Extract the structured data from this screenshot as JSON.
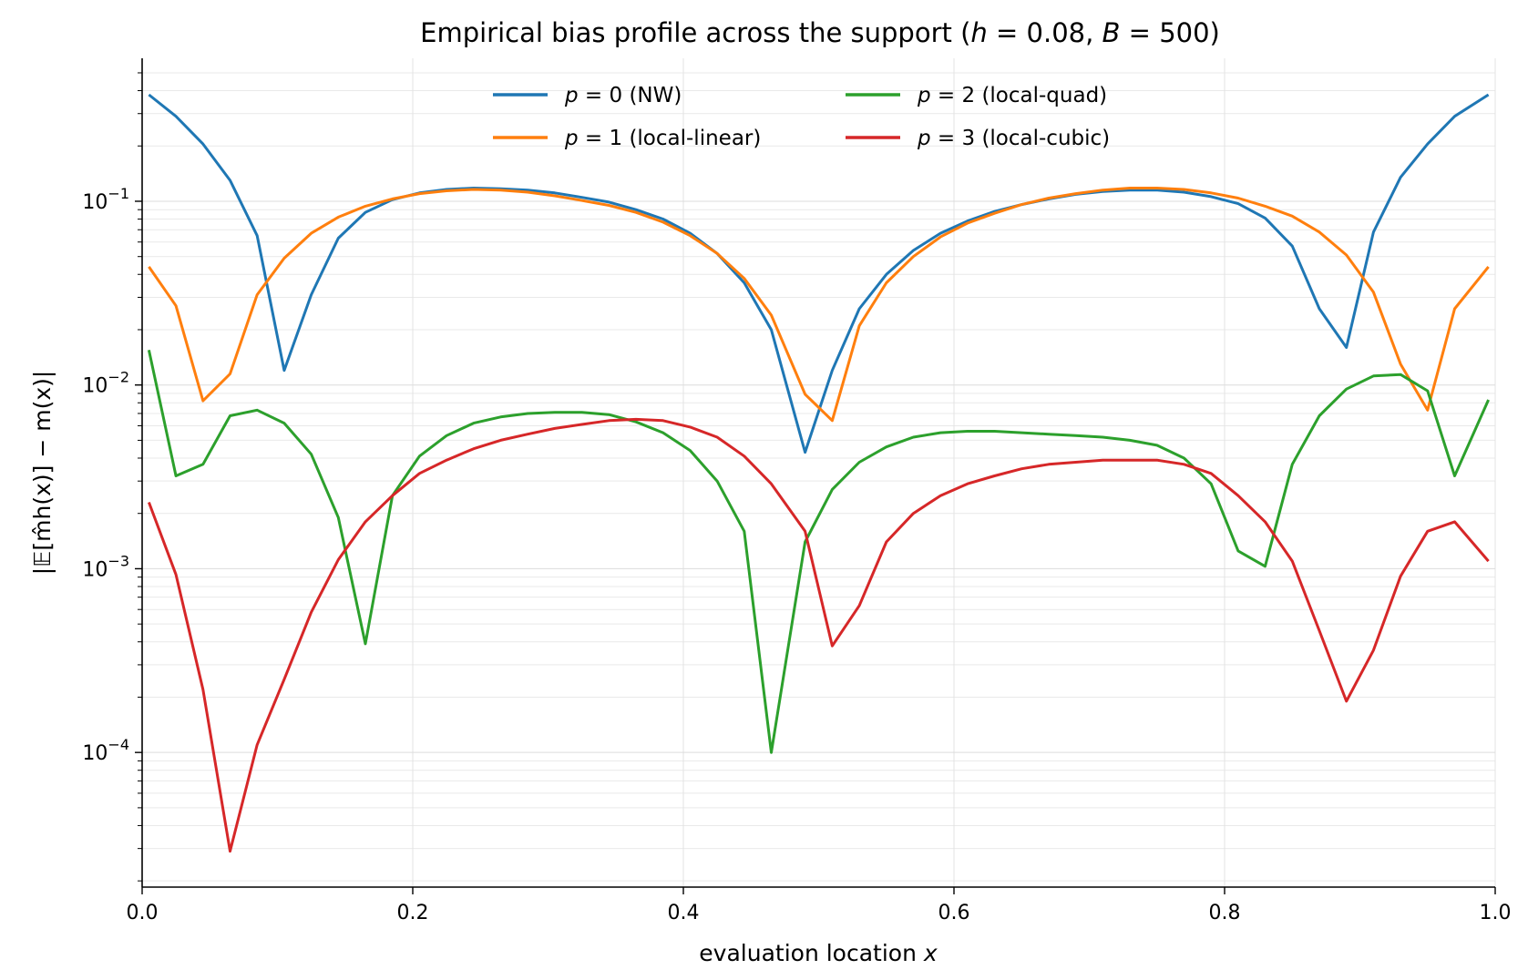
{
  "chart_data": {
    "type": "line",
    "title": "Empirical bias profile across the support  (h = 0.08, B = 500)",
    "title_parts": [
      {
        "text": "Empirical bias profile across the support  (",
        "italic": false
      },
      {
        "text": "h",
        "italic": true
      },
      {
        "text": " = 0.08, ",
        "italic": false
      },
      {
        "text": "B",
        "italic": true
      },
      {
        "text": " = 500)",
        "italic": false
      }
    ],
    "xlabel": "evaluation location x",
    "xlabel_parts": [
      {
        "text": "evaluation location ",
        "italic": false
      },
      {
        "text": "x",
        "italic": true
      }
    ],
    "ylabel": "|𝔼[m̂h(x)] − m(x)|",
    "xlim": [
      0,
      1
    ],
    "ylim": [
      1.85e-05,
      0.6
    ],
    "yscale": "log",
    "grid": true,
    "legend_position": "top-center",
    "x_ticks": [
      {
        "value": 0.0,
        "label": "0.0"
      },
      {
        "value": 0.2,
        "label": "0.2"
      },
      {
        "value": 0.4,
        "label": "0.4"
      },
      {
        "value": 0.6,
        "label": "0.6"
      },
      {
        "value": 0.8,
        "label": "0.8"
      },
      {
        "value": 1.0,
        "label": "1.0"
      }
    ],
    "y_ticks": [
      {
        "value": 0.0001,
        "base": "10",
        "exp": "−4"
      },
      {
        "value": 0.001,
        "base": "10",
        "exp": "−3"
      },
      {
        "value": 0.01,
        "base": "10",
        "exp": "−2"
      },
      {
        "value": 0.1,
        "base": "10",
        "exp": "−1"
      }
    ],
    "x": [
      0.005,
      0.025,
      0.045,
      0.065,
      0.085,
      0.105,
      0.125,
      0.145,
      0.165,
      0.185,
      0.205,
      0.225,
      0.245,
      0.265,
      0.285,
      0.305,
      0.325,
      0.345,
      0.365,
      0.385,
      0.405,
      0.425,
      0.445,
      0.465,
      0.49,
      0.51,
      0.53,
      0.55,
      0.57,
      0.59,
      0.61,
      0.63,
      0.65,
      0.67,
      0.69,
      0.71,
      0.73,
      0.75,
      0.77,
      0.79,
      0.81,
      0.83,
      0.85,
      0.87,
      0.89,
      0.91,
      0.93,
      0.95,
      0.97,
      0.995
    ],
    "series": [
      {
        "name": "p = 0 (NW)",
        "label_parts": [
          {
            "text": "p",
            "italic": true
          },
          {
            "text": " = 0 (NW)",
            "italic": false
          }
        ],
        "color": "#1f77b4",
        "values": [
          0.38,
          0.29,
          0.205,
          0.13,
          0.065,
          0.012,
          0.031,
          0.063,
          0.087,
          0.102,
          0.111,
          0.116,
          0.118,
          0.117,
          0.115,
          0.111,
          0.105,
          0.099,
          0.09,
          0.08,
          0.067,
          0.052,
          0.036,
          0.02,
          0.0043,
          0.012,
          0.026,
          0.04,
          0.054,
          0.067,
          0.078,
          0.088,
          0.096,
          0.103,
          0.109,
          0.113,
          0.115,
          0.115,
          0.112,
          0.106,
          0.097,
          0.081,
          0.057,
          0.026,
          0.016,
          0.068,
          0.135,
          0.205,
          0.29,
          0.38
        ]
      },
      {
        "name": "p = 1 (local-linear)",
        "label_parts": [
          {
            "text": "p",
            "italic": true
          },
          {
            "text": " = 1 (local-linear)",
            "italic": false
          }
        ],
        "color": "#ff7f0e",
        "values": [
          0.044,
          0.027,
          0.0082,
          0.0115,
          0.031,
          0.049,
          0.067,
          0.082,
          0.094,
          0.103,
          0.11,
          0.114,
          0.116,
          0.115,
          0.112,
          0.107,
          0.101,
          0.095,
          0.087,
          0.077,
          0.065,
          0.052,
          0.038,
          0.024,
          0.0089,
          0.0064,
          0.021,
          0.036,
          0.05,
          0.064,
          0.076,
          0.086,
          0.096,
          0.104,
          0.11,
          0.115,
          0.118,
          0.118,
          0.116,
          0.111,
          0.104,
          0.094,
          0.083,
          0.068,
          0.051,
          0.032,
          0.013,
          0.0073,
          0.026,
          0.044
        ]
      },
      {
        "name": "p = 2 (local-quad)",
        "label_parts": [
          {
            "text": "p",
            "italic": true
          },
          {
            "text": " = 2 (local-quad)",
            "italic": false
          }
        ],
        "color": "#2ca02c",
        "values": [
          0.0155,
          0.0032,
          0.0037,
          0.0068,
          0.0073,
          0.0062,
          0.0042,
          0.0019,
          0.00039,
          0.0025,
          0.0041,
          0.0053,
          0.0062,
          0.0067,
          0.007,
          0.0071,
          0.0071,
          0.0069,
          0.0063,
          0.0055,
          0.0044,
          0.003,
          0.0016,
          0.0001,
          0.0014,
          0.0027,
          0.0038,
          0.0046,
          0.0052,
          0.0055,
          0.0056,
          0.0056,
          0.0055,
          0.0054,
          0.0053,
          0.0052,
          0.005,
          0.0047,
          0.004,
          0.0029,
          0.00125,
          0.00103,
          0.0037,
          0.0068,
          0.0095,
          0.0112,
          0.0114,
          0.0093,
          0.0032,
          0.0083
        ]
      },
      {
        "name": "p = 3 (local-cubic)",
        "label_parts": [
          {
            "text": "p",
            "italic": true
          },
          {
            "text": " = 3 (local-cubic)",
            "italic": false
          }
        ],
        "color": "#d62728",
        "values": [
          0.0023,
          0.00093,
          0.00022,
          2.9e-05,
          0.00011,
          0.00025,
          0.00058,
          0.00112,
          0.0018,
          0.0025,
          0.0033,
          0.0039,
          0.0045,
          0.005,
          0.0054,
          0.0058,
          0.0061,
          0.0064,
          0.0065,
          0.0064,
          0.0059,
          0.0052,
          0.0041,
          0.0029,
          0.0016,
          0.00038,
          0.00063,
          0.0014,
          0.002,
          0.0025,
          0.0029,
          0.0032,
          0.0035,
          0.0037,
          0.0038,
          0.0039,
          0.0039,
          0.0039,
          0.0037,
          0.0033,
          0.0025,
          0.0018,
          0.0011,
          0.00046,
          0.00019,
          0.00036,
          0.00091,
          0.0016,
          0.0018,
          0.0011
        ]
      }
    ]
  }
}
